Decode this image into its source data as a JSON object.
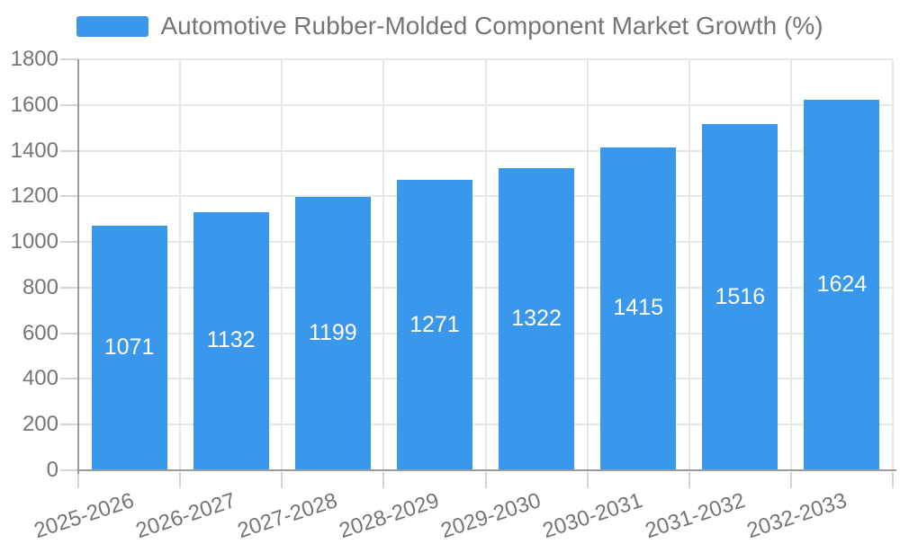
{
  "legend": {
    "label": "Automotive Rubber-Molded Component Market Growth (%)"
  },
  "colors": {
    "bar": "#3998EC",
    "axis_line": "#9B9B9B",
    "grid_line": "#E7E7E7",
    "tick_line": "#D4D4D4",
    "axis_label": "#757575",
    "legend_text": "#757575",
    "value_label": "#FFFFFF",
    "background": "#FFFFFF"
  },
  "chart_data": {
    "type": "bar",
    "title": "Automotive Rubber-Molded Component Market Growth (%)",
    "categories": [
      "2025-2026",
      "2026-2027",
      "2027-2028",
      "2028-2029",
      "2029-2030",
      "2030-2031",
      "2031-2032",
      "2032-2033"
    ],
    "values": [
      1071,
      1132,
      1199,
      1271,
      1322,
      1415,
      1516,
      1624
    ],
    "xlabel": "",
    "ylabel": "",
    "ylim": [
      0,
      1800
    ],
    "ytick_step": 200,
    "grid": true,
    "legend_position": "top-center",
    "value_labels": "inside-center",
    "x_label_rotation_deg": -18
  }
}
